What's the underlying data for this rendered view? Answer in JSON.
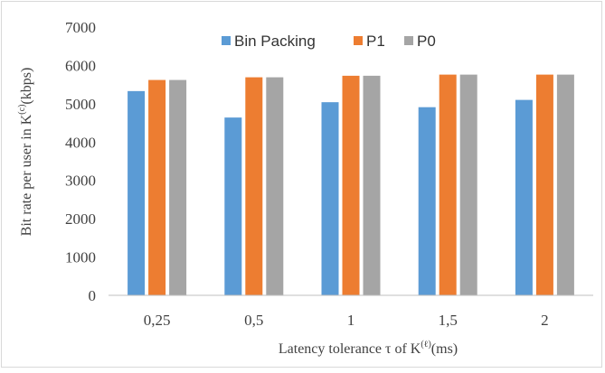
{
  "chart_data": {
    "type": "bar",
    "title": "",
    "xlabel": {
      "main": "Latency tolerance τ of K",
      "superscript": "(ℓ)",
      "unit": "(ms)"
    },
    "ylabel": {
      "main": "Bit rate per user in K",
      "superscript": "(c)",
      "unit": "(kbps)"
    },
    "categories": [
      "0,25",
      "0,5",
      "1",
      "1,5",
      "2"
    ],
    "series": [
      {
        "name": "Bin Packing",
        "color": "#5b9bd5",
        "values": [
          5330,
          4640,
          5040,
          4910,
          5100
        ]
      },
      {
        "name": "P1",
        "color": "#ed7d31",
        "values": [
          5620,
          5690,
          5730,
          5760,
          5760
        ]
      },
      {
        "name": "P0",
        "color": "#a5a5a5",
        "values": [
          5620,
          5690,
          5730,
          5760,
          5760
        ]
      }
    ],
    "ylim": [
      0,
      7000
    ],
    "yticks": [
      "0",
      "1000",
      "2000",
      "3000",
      "4000",
      "5000",
      "6000",
      "7000"
    ],
    "grid": false,
    "legend": "top-center"
  }
}
